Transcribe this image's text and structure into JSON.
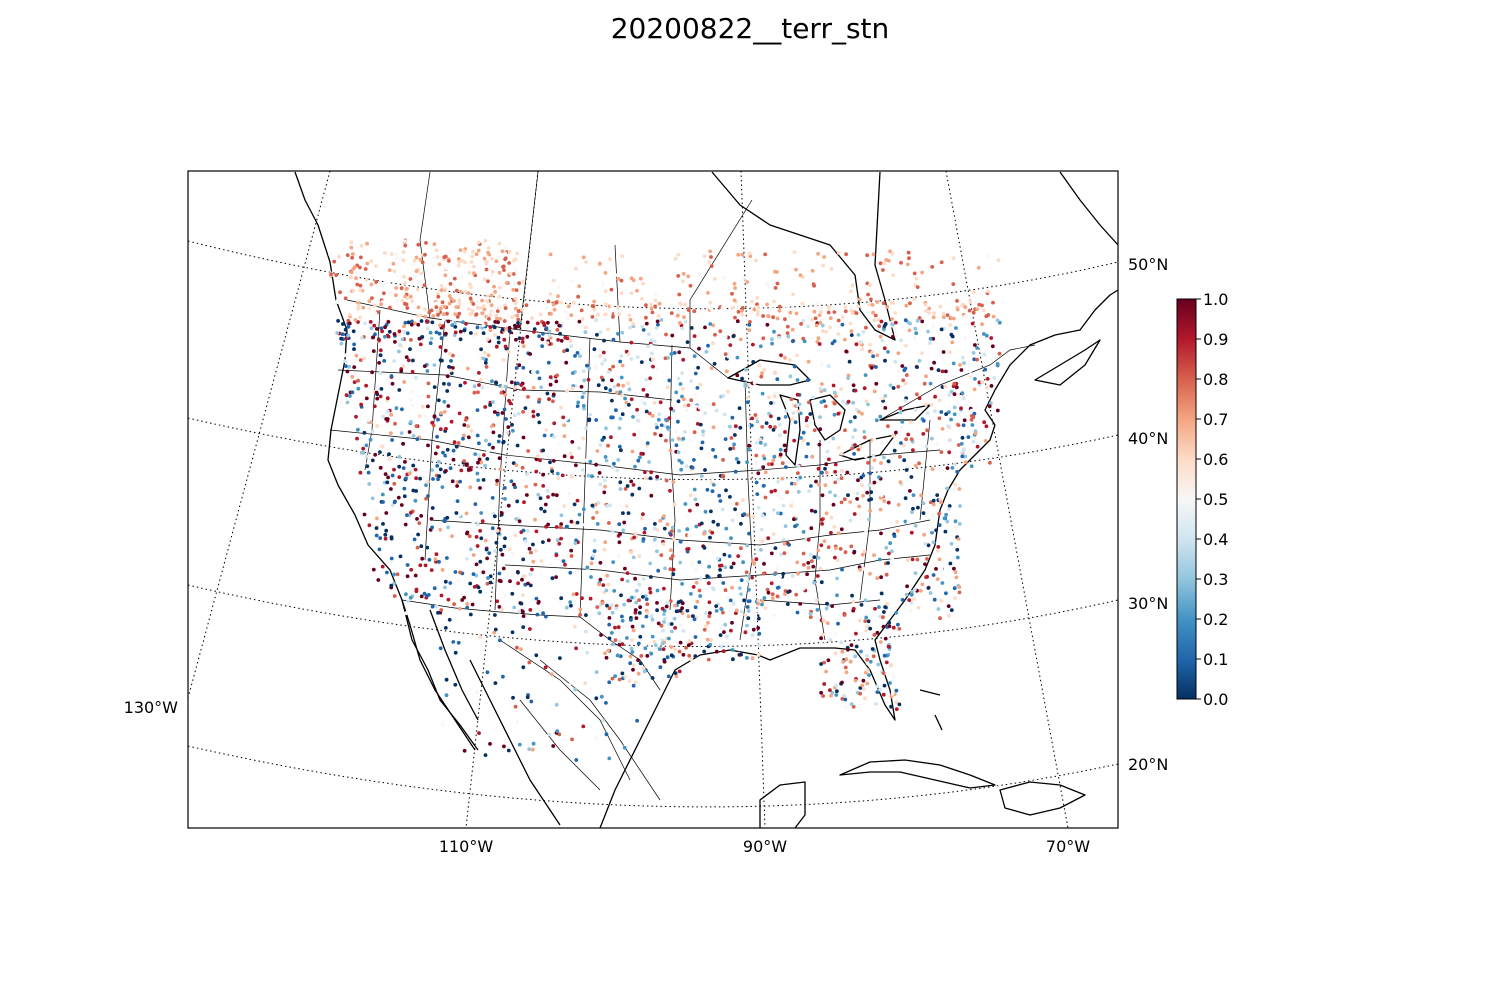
{
  "title": "20200822__terr_stn",
  "map": {
    "projection": "lambert-conformal",
    "lat_labels": [
      {
        "value": 50,
        "text": "50°N"
      },
      {
        "value": 40,
        "text": "40°N"
      },
      {
        "value": 30,
        "text": "30°N"
      },
      {
        "value": 20,
        "text": "20°N"
      }
    ],
    "lon_labels": [
      {
        "value": -130,
        "text": "130°W"
      },
      {
        "value": -110,
        "text": "110°W"
      },
      {
        "value": -90,
        "text": "90°W"
      },
      {
        "value": -70,
        "text": "70°W"
      }
    ],
    "gridlines": "dotted",
    "marker": "station-dots",
    "colormap": "RdBu_r"
  },
  "colorbar": {
    "min": 0.0,
    "max": 1.0,
    "ticks": [
      "0.0",
      "0.1",
      "0.2",
      "0.3",
      "0.4",
      "0.5",
      "0.6",
      "0.7",
      "0.8",
      "0.9",
      "1.0"
    ],
    "colors": {
      "low": "#053061",
      "mid_low": "#4393c3",
      "mid": "#f7f7f7",
      "mid_high": "#f4a582",
      "high": "#67001f"
    }
  }
}
